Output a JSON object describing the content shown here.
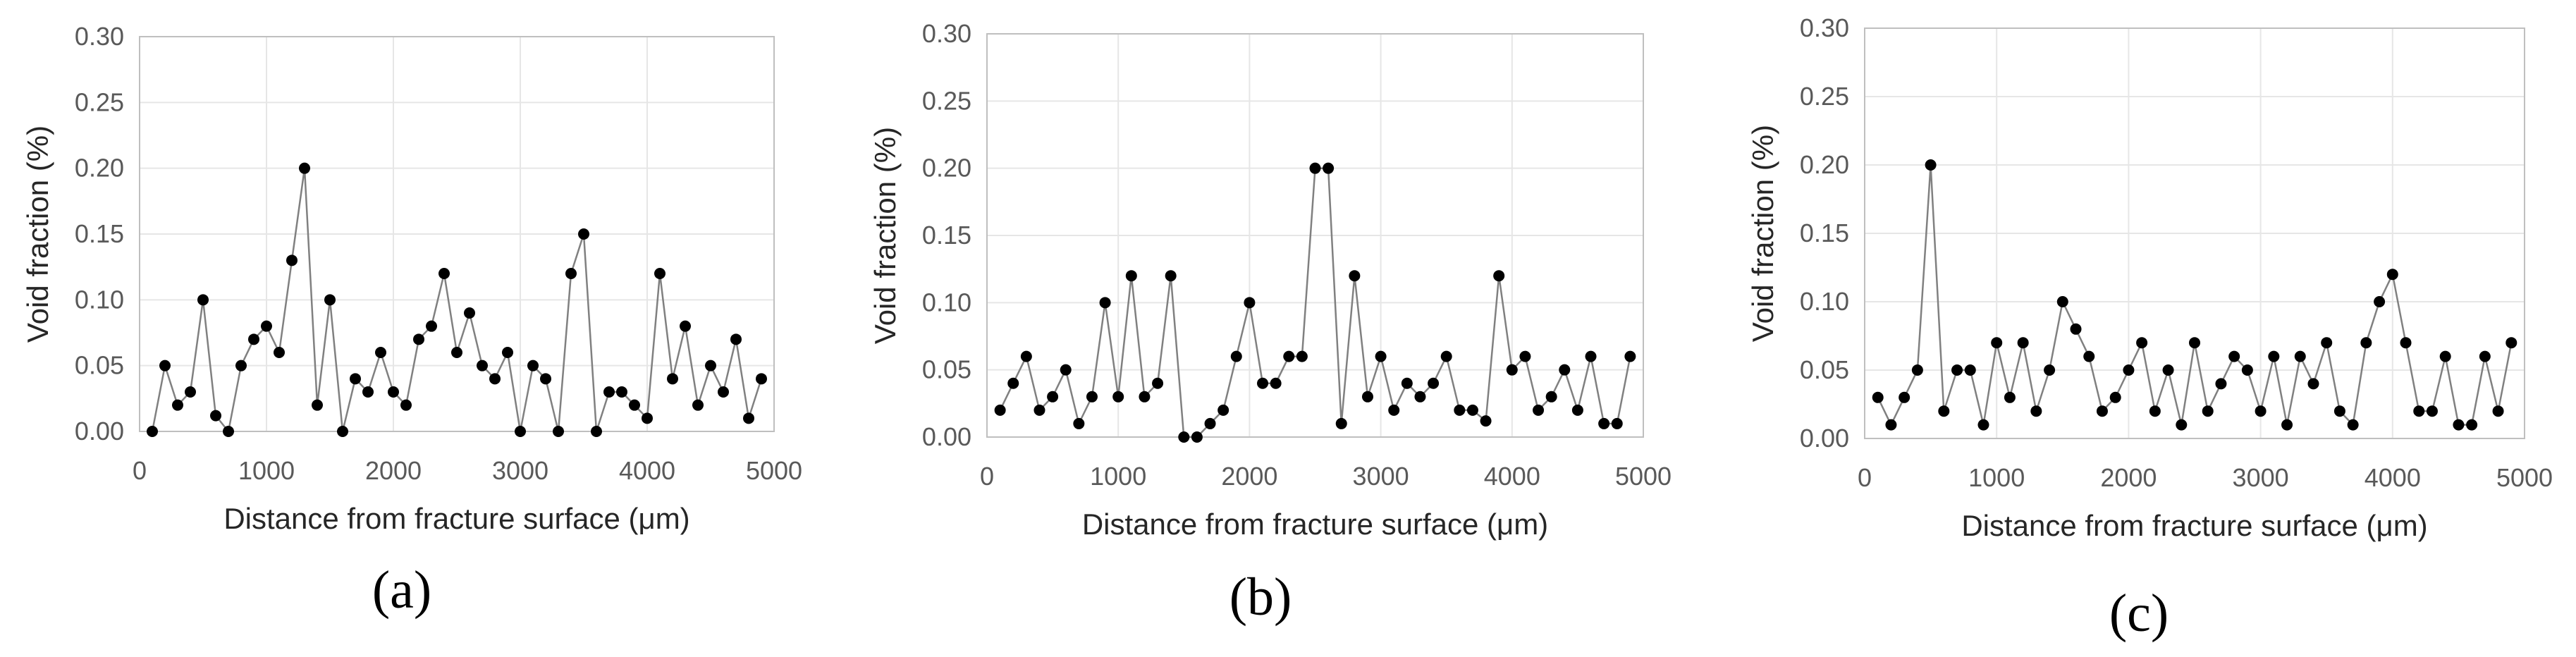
{
  "chart_data": [
    {
      "type": "line",
      "panel_label": "(a)",
      "xlabel": "Distance from fracture surface (μm)",
      "ylabel": "Void fraction (%)",
      "xlim": [
        0,
        5000
      ],
      "ylim": [
        0,
        0.3
      ],
      "xticks": [
        "0",
        "1000",
        "2000",
        "3000",
        "4000",
        "5000"
      ],
      "yticks": [
        "0.00",
        "0.05",
        "0.10",
        "0.15",
        "0.20",
        "0.25",
        "0.30"
      ],
      "grid": true,
      "series": [
        {
          "x": [
            100,
            200,
            300,
            400,
            500,
            600,
            700,
            800,
            900,
            1000,
            1100,
            1200,
            1300,
            1400,
            1500,
            1600,
            1700,
            1800,
            1900,
            2000,
            2100,
            2200,
            2300,
            2400,
            2500,
            2600,
            2700,
            2800,
            2900,
            3000,
            3100,
            3200,
            3300,
            3400,
            3500,
            3600,
            3700,
            3800,
            3900,
            4000,
            4100,
            4200,
            4300,
            4400,
            4500,
            4600,
            4700,
            4800,
            4900
          ],
          "values": [
            0.0,
            0.05,
            0.02,
            0.03,
            0.1,
            0.012,
            0.0,
            0.05,
            0.07,
            0.08,
            0.06,
            0.13,
            0.2,
            0.02,
            0.1,
            0.0,
            0.04,
            0.03,
            0.06,
            0.03,
            0.02,
            0.07,
            0.08,
            0.12,
            0.06,
            0.09,
            0.05,
            0.04,
            0.06,
            0.0,
            0.05,
            0.04,
            0.0,
            0.12,
            0.15,
            0.0,
            0.03,
            0.03,
            0.02,
            0.01,
            0.12,
            0.04,
            0.08,
            0.02,
            0.05,
            0.03,
            0.07,
            0.01,
            0.04
          ]
        }
      ]
    },
    {
      "type": "line",
      "panel_label": "(b)",
      "xlabel": "Distance from fracture surface (μm)",
      "ylabel": "Void fraction (%)",
      "xlim": [
        0,
        5000
      ],
      "ylim": [
        0,
        0.3
      ],
      "xticks": [
        "0",
        "1000",
        "2000",
        "3000",
        "4000",
        "5000"
      ],
      "yticks": [
        "0.00",
        "0.05",
        "0.10",
        "0.15",
        "0.20",
        "0.25",
        "0.30"
      ],
      "grid": true,
      "series": [
        {
          "x": [
            100,
            200,
            300,
            400,
            500,
            600,
            700,
            800,
            900,
            1000,
            1100,
            1200,
            1300,
            1400,
            1500,
            1600,
            1700,
            1800,
            1900,
            2000,
            2100,
            2200,
            2300,
            2400,
            2500,
            2600,
            2700,
            2800,
            2900,
            3000,
            3100,
            3200,
            3300,
            3400,
            3500,
            3600,
            3700,
            3800,
            3900,
            4000,
            4100,
            4200,
            4300,
            4400,
            4500,
            4600,
            4700,
            4800,
            4900
          ],
          "values": [
            0.02,
            0.04,
            0.06,
            0.02,
            0.03,
            0.05,
            0.01,
            0.03,
            0.1,
            0.03,
            0.12,
            0.03,
            0.04,
            0.12,
            0.0,
            0.0,
            0.01,
            0.02,
            0.06,
            0.1,
            0.04,
            0.04,
            0.06,
            0.06,
            0.2,
            0.2,
            0.01,
            0.12,
            0.03,
            0.06,
            0.02,
            0.04,
            0.03,
            0.04,
            0.06,
            0.02,
            0.02,
            0.012,
            0.12,
            0.05,
            0.06,
            0.02,
            0.03,
            0.05,
            0.02,
            0.06,
            0.01,
            0.01,
            0.06
          ]
        }
      ]
    },
    {
      "type": "line",
      "panel_label": "(c)",
      "xlabel": "Distance from fracture surface (μm)",
      "ylabel": "Void fraction (%)",
      "xlim": [
        0,
        5000
      ],
      "ylim": [
        0,
        0.3
      ],
      "xticks": [
        "0",
        "1000",
        "2000",
        "3000",
        "4000",
        "5000"
      ],
      "yticks": [
        "0.00",
        "0.05",
        "0.10",
        "0.15",
        "0.20",
        "0.25",
        "0.30"
      ],
      "grid": true,
      "series": [
        {
          "x": [
            100,
            200,
            300,
            400,
            500,
            600,
            700,
            800,
            900,
            1000,
            1100,
            1200,
            1300,
            1400,
            1500,
            1600,
            1700,
            1800,
            1900,
            2000,
            2100,
            2200,
            2300,
            2400,
            2500,
            2600,
            2700,
            2800,
            2900,
            3000,
            3100,
            3200,
            3300,
            3400,
            3500,
            3600,
            3700,
            3800,
            3900,
            4000,
            4100,
            4200,
            4300,
            4400,
            4500,
            4600,
            4700,
            4800,
            4900
          ],
          "values": [
            0.03,
            0.01,
            0.03,
            0.05,
            0.2,
            0.02,
            0.05,
            0.05,
            0.01,
            0.07,
            0.03,
            0.07,
            0.02,
            0.05,
            0.1,
            0.08,
            0.06,
            0.02,
            0.03,
            0.05,
            0.07,
            0.02,
            0.05,
            0.01,
            0.07,
            0.02,
            0.04,
            0.06,
            0.05,
            0.02,
            0.06,
            0.01,
            0.06,
            0.04,
            0.07,
            0.02,
            0.01,
            0.07,
            0.1,
            0.12,
            0.07,
            0.02,
            0.02,
            0.06,
            0.01,
            0.01,
            0.06,
            0.02,
            0.07
          ]
        }
      ]
    }
  ]
}
